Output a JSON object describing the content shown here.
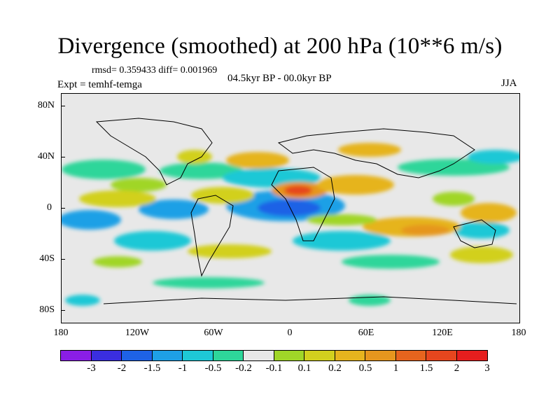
{
  "header": {
    "title": "Divergence (smoothed) at 200 hPa (10**6 m/s)",
    "stats": "rmsd= 0.359433 diff= 0.001969",
    "period": "04.5kyr BP - 00.0kyr BP",
    "experiment": "Expt = temhf-temga",
    "season": "JJA"
  },
  "axes": {
    "lat_labels": [
      "80N",
      "40N",
      "0",
      "40S",
      "80S"
    ],
    "lon_labels": [
      "180",
      "120W",
      "60W",
      "0",
      "60E",
      "120E",
      "180"
    ]
  },
  "colorbar": {
    "colors": [
      "#8a1ee6",
      "#3a2ee0",
      "#1e62e6",
      "#1ea0e6",
      "#1ec8d6",
      "#2ed69a",
      "#e8e8e8",
      "#a0d628",
      "#d2d01e",
      "#e6b41e",
      "#e6961e",
      "#e6641e",
      "#e6461e",
      "#e61e1e"
    ],
    "labels": [
      "-3",
      "-2",
      "-1.5",
      "-1",
      "-0.5",
      "-0.2",
      "-0.1",
      "0.1",
      "0.2",
      "0.5",
      "1",
      "1.5",
      "2",
      "3"
    ]
  }
}
